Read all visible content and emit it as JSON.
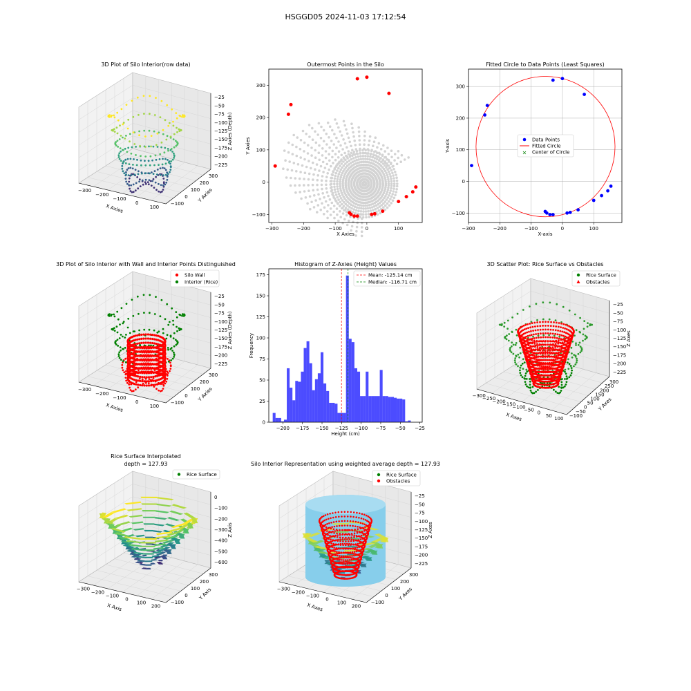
{
  "figure": {
    "suptitle": "HSGGD05 2024-11-03 17:12:54"
  },
  "chart_data": [
    {
      "id": "raw3d",
      "type": "scatter",
      "projection": "3d",
      "title": "3D Plot of Silo Interior(row data)",
      "xlabel": "X Axies",
      "ylabel": "Y Axies",
      "zlabel": "Z Axies (Depth)",
      "xticks": [
        "−300",
        "−200",
        "−100",
        "0",
        "100"
      ],
      "yticks": [
        "−100",
        "0",
        "100",
        "200",
        "300"
      ],
      "zticks": [
        "−225",
        "−200",
        "−175",
        "−150",
        "−125",
        "−100",
        "−75",
        "−50",
        "−25"
      ],
      "xlim": [
        -300,
        150
      ],
      "ylim": [
        -100,
        330
      ],
      "zlim": [
        -230,
        -20
      ],
      "colormap": "viridis"
    },
    {
      "id": "outer",
      "type": "scatter",
      "title": "Outermost Points in the Silo",
      "xlabel": "X Axies",
      "ylabel": "Y Axies",
      "xlim": [
        -310,
        175
      ],
      "ylim": [
        -125,
        350
      ],
      "xticks": [
        "−300",
        "−200",
        "−100",
        "0",
        "100"
      ],
      "yticks": [
        "−100",
        "0",
        "100",
        "200",
        "300"
      ],
      "xtick_values": [
        -300,
        -200,
        -100,
        0,
        100
      ],
      "ytick_values": [
        -100,
        0,
        100,
        200,
        300
      ],
      "outer_points": [
        [
          -290,
          50
        ],
        [
          -248,
          210
        ],
        [
          -240,
          240
        ],
        [
          -30,
          320
        ],
        [
          0,
          325
        ],
        [
          70,
          275
        ],
        [
          155,
          -15
        ],
        [
          145,
          -30
        ],
        [
          125,
          -45
        ],
        [
          100,
          -60
        ],
        [
          50,
          -90
        ],
        [
          25,
          -98
        ],
        [
          15,
          -100
        ],
        [
          -30,
          -105
        ],
        [
          -40,
          -105
        ],
        [
          -50,
          -100
        ],
        [
          -55,
          -95
        ]
      ],
      "background_color": "#d3d3d3",
      "point_color": "#ff0000"
    },
    {
      "id": "circle",
      "type": "scatter",
      "title": "Fitted Circle to Data Points (Least Squares)",
      "xlabel": "X-axis",
      "ylabel": "Y-axis",
      "xlim": [
        -300,
        190
      ],
      "ylim": [
        -130,
        355
      ],
      "xticks": [
        "−300",
        "−200",
        "−100",
        "0",
        "100"
      ],
      "yticks": [
        "−100",
        "0",
        "100",
        "200",
        "300"
      ],
      "xtick_values": [
        -300,
        -200,
        -100,
        0,
        100
      ],
      "ytick_values": [
        -100,
        0,
        100,
        200,
        300
      ],
      "grid": true,
      "points": [
        [
          -290,
          50
        ],
        [
          -248,
          210
        ],
        [
          -240,
          240
        ],
        [
          -30,
          320
        ],
        [
          0,
          325
        ],
        [
          70,
          275
        ],
        [
          155,
          -15
        ],
        [
          145,
          -30
        ],
        [
          125,
          -45
        ],
        [
          100,
          -60
        ],
        [
          50,
          -90
        ],
        [
          25,
          -98
        ],
        [
          15,
          -100
        ],
        [
          -30,
          -105
        ],
        [
          -40,
          -105
        ],
        [
          -50,
          -100
        ],
        [
          -55,
          -95
        ]
      ],
      "circle": {
        "cx": -54,
        "cy": 110,
        "r": 222
      },
      "legend": [
        "Data Points",
        "Fitted Circle",
        "Center of Circle"
      ],
      "legend_position": "center"
    },
    {
      "id": "wall3d",
      "type": "scatter",
      "projection": "3d",
      "title": "3D Plot of Silo Interior with Wall and Interior Points Distinguished",
      "xlabel": "X Axies",
      "ylabel": "Y Axies",
      "zlabel": "Z Axies (Depth)",
      "xticks": [
        "−300",
        "−200",
        "−100",
        "0",
        "100"
      ],
      "yticks": [
        "−100",
        "0",
        "100",
        "200",
        "300"
      ],
      "zticks": [
        "−225",
        "−200",
        "−175",
        "−150",
        "−125",
        "−100",
        "−75",
        "−50",
        "−25"
      ],
      "legend": [
        "Silo Wall",
        "Interior (Rice)"
      ],
      "legend_position": "top-right"
    },
    {
      "id": "hist",
      "type": "bar",
      "title": "Histogram of Z-Axies (Height) Values",
      "xlabel": "Height (cm)",
      "ylabel": "Frequency",
      "xlim": [
        -218,
        -22
      ],
      "ylim": [
        0,
        182
      ],
      "xticks": [
        "−200",
        "−175",
        "−150",
        "−125",
        "−100",
        "−75",
        "−50",
        "−25"
      ],
      "xtick_values": [
        -200,
        -175,
        -150,
        -125,
        -100,
        -75,
        -50,
        -25
      ],
      "yticks": [
        "0",
        "25",
        "50",
        "75",
        "100",
        "125",
        "150",
        "175"
      ],
      "ytick_values": [
        0,
        25,
        50,
        75,
        100,
        125,
        150,
        175
      ],
      "bin_start": -213,
      "bin_width": 3.6,
      "values": [
        11,
        5,
        5,
        1,
        3,
        64,
        41,
        26,
        49,
        48,
        60,
        88,
        96,
        70,
        38,
        51,
        58,
        83,
        46,
        37,
        23,
        23,
        22,
        11,
        11,
        11,
        174,
        99,
        95,
        64,
        60,
        31,
        31,
        60,
        31,
        31,
        31,
        31,
        62,
        31,
        31,
        30,
        30,
        29,
        28,
        28,
        27,
        1,
        2
      ],
      "mean": -125.14,
      "median": -116.71,
      "legend": [
        "Mean: -125.14 cm",
        "Median: -116.71 cm"
      ],
      "legend_position": "top-right",
      "bar_color": "#0000ff"
    },
    {
      "id": "obst3d",
      "type": "scatter",
      "projection": "3d",
      "title": "3D Scatter Plot: Rice Surface vs Obstacles",
      "xlabel": "X Axes",
      "ylabel": "Y Axes",
      "zlabel": "Z Axes",
      "xticks": [
        "−300",
        "−250",
        "−200",
        "−150",
        "−100",
        "−50",
        "0",
        "50",
        "100"
      ],
      "yticks": [
        "−100",
        "−50",
        "0",
        "50",
        "100",
        "150",
        "200",
        "250",
        "300"
      ],
      "zticks": [
        "−225",
        "−200",
        "−175",
        "−150",
        "−125",
        "−100",
        "−75",
        "−50",
        "−25"
      ],
      "legend": [
        "Rice Surface",
        "Obstacles"
      ],
      "legend_position": "top-right"
    },
    {
      "id": "interp3d",
      "type": "scatter",
      "projection": "3d",
      "title": "Rice Surface Interpolated",
      "subtitle": "depth = 127.93",
      "xlabel": "X Axis",
      "ylabel": "Y Axis",
      "zlabel": "Z Axis",
      "xticks": [
        "−300",
        "−200",
        "−100",
        "0",
        "100",
        "200"
      ],
      "yticks": [
        "−100",
        "0",
        "100",
        "200",
        "300"
      ],
      "zticks": [
        "−600",
        "−500",
        "−400",
        "−300",
        "−200",
        "−100",
        "0"
      ],
      "legend": [
        "Rice Surface"
      ],
      "legend_position": "top-right"
    },
    {
      "id": "silo3d",
      "type": "scatter",
      "projection": "3d",
      "title": "Silo Interior Representation using weighted average depth = 127.93",
      "xlabel": "X Axes",
      "ylabel": "Y Axes",
      "zlabel": "Z Axes",
      "xticks": [
        "−300",
        "−200",
        "−100",
        "0",
        "100",
        "200"
      ],
      "yticks": [
        "−100",
        "0",
        "100",
        "200",
        "300"
      ],
      "zticks": [
        "−225",
        "−200",
        "−175",
        "−150",
        "−125",
        "−100",
        "−75",
        "−50",
        "−25"
      ],
      "legend": [
        "Rice Surface",
        "Obstacles"
      ],
      "legend_position": "top-center",
      "cylinder_color": "#87ceeb"
    }
  ]
}
